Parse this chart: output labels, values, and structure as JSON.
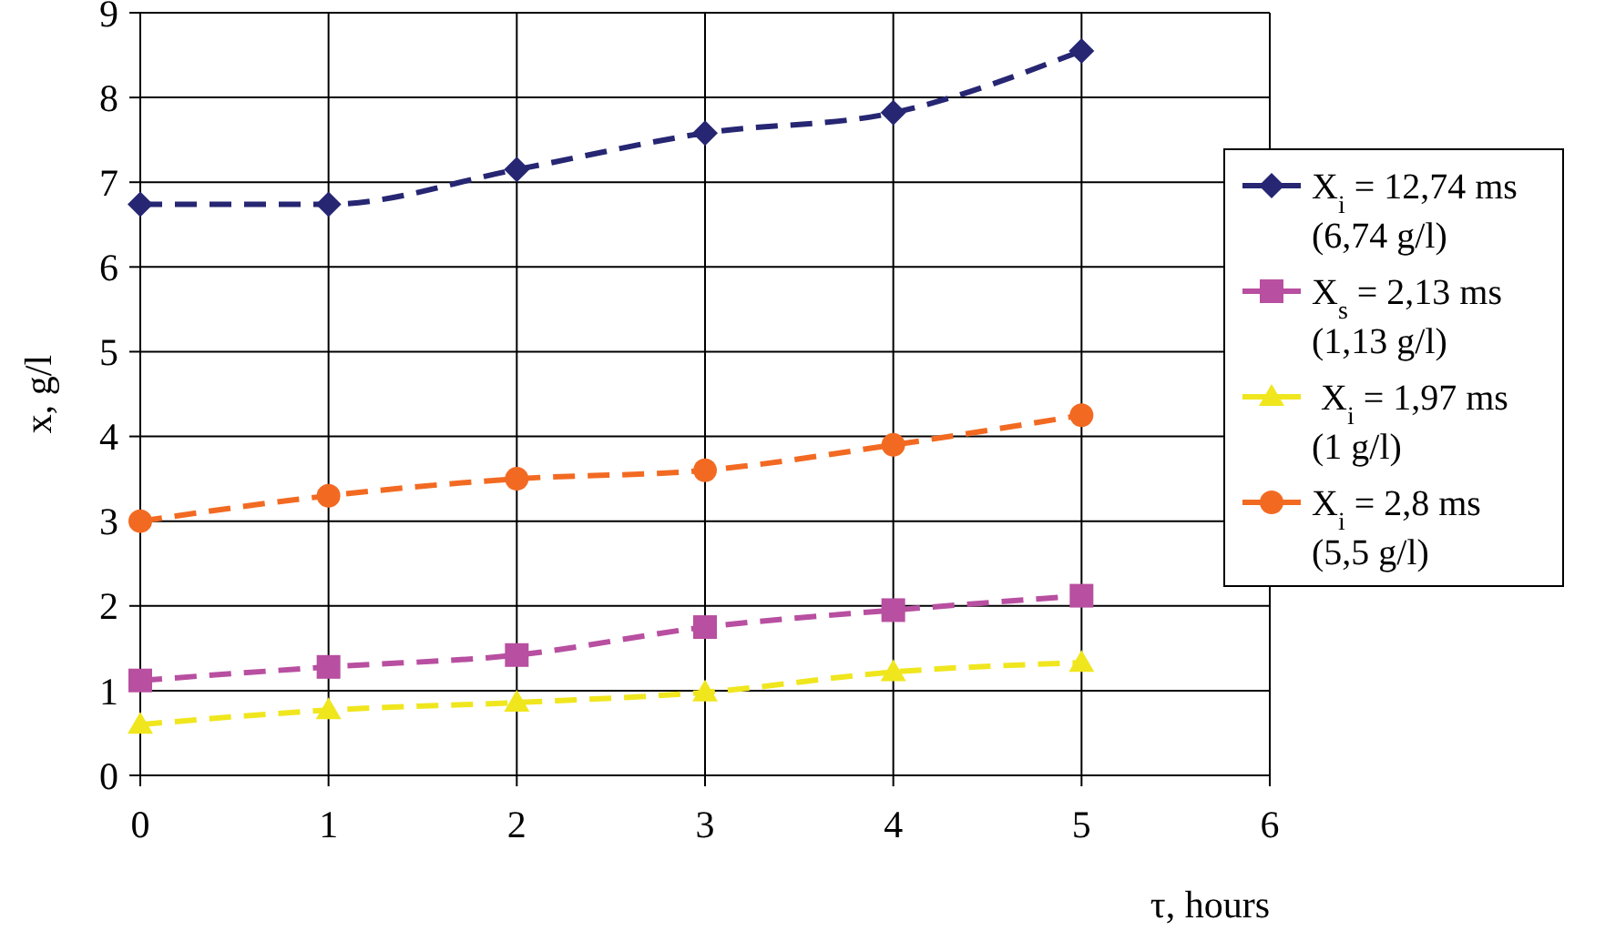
{
  "chart_data": {
    "type": "line",
    "xlabel": "τ, hours",
    "ylabel": "x, g/l",
    "x": [
      0,
      1,
      2,
      3,
      4,
      5
    ],
    "xlim": [
      0,
      6
    ],
    "xticks": [
      0,
      1,
      2,
      3,
      4,
      5,
      6
    ],
    "ylim": [
      0,
      9
    ],
    "yticks": [
      0,
      1,
      2,
      3,
      4,
      5,
      6,
      7,
      8,
      9
    ],
    "grid": true,
    "legend": "right",
    "line_style": "dashed",
    "series": [
      {
        "name": "X$_{i}$ = 12,74 ms\n(6,74 g/l)",
        "color": "#262673",
        "marker": "diamond",
        "values": [
          6.74,
          6.74,
          7.15,
          7.58,
          7.82,
          8.55
        ]
      },
      {
        "name": "X$_{s}$ = 2,13 ms\n(1,13 g/l)",
        "color": "#b84fa0",
        "marker": "square",
        "values": [
          1.12,
          1.28,
          1.42,
          1.75,
          1.95,
          2.12
        ]
      },
      {
        "name": " X$_{i}$ = 1,97 ms\n(1 g/l)",
        "color": "#f0e61e",
        "marker": "triangle",
        "values": [
          0.6,
          0.77,
          0.86,
          0.98,
          1.22,
          1.33
        ]
      },
      {
        "name": "X$_{i}$ = 2,8 ms\n(5,5 g/l)",
        "color": "#f26a22",
        "marker": "circle",
        "values": [
          3.0,
          3.3,
          3.5,
          3.6,
          3.9,
          4.25
        ]
      }
    ]
  }
}
